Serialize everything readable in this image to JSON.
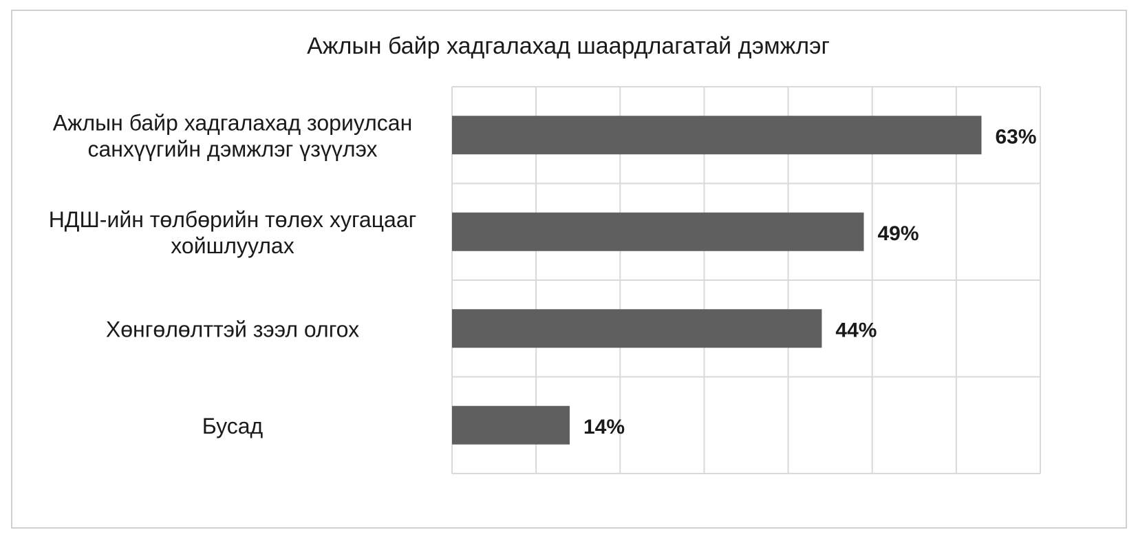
{
  "chart_data": {
    "type": "bar",
    "orientation": "horizontal",
    "title": "Ажлын байр хадгалахад шаардлагатай дэмжлэг",
    "categories": [
      [
        "Ажлын байр хадгалахад зориулсан",
        "санхүүгийн дэмжлэг үзүүлэх"
      ],
      [
        "НДШ-ийн төлбөрийн төлөх хугацааг",
        "хойшлуулах"
      ],
      [
        "Хөнгөлөлттэй зээл олгох"
      ],
      [
        "Бусад"
      ]
    ],
    "values": [
      63,
      49,
      44,
      14
    ],
    "data_labels": [
      "63%",
      "49%",
      "44%",
      "14%"
    ],
    "xlim": [
      0,
      70
    ],
    "grid": true,
    "legend": "none",
    "colors": {
      "bar": "#5f5f5f",
      "grid": "#d9d9d9",
      "frame": "#d0d0d0",
      "text": "#1a1a1a"
    }
  }
}
